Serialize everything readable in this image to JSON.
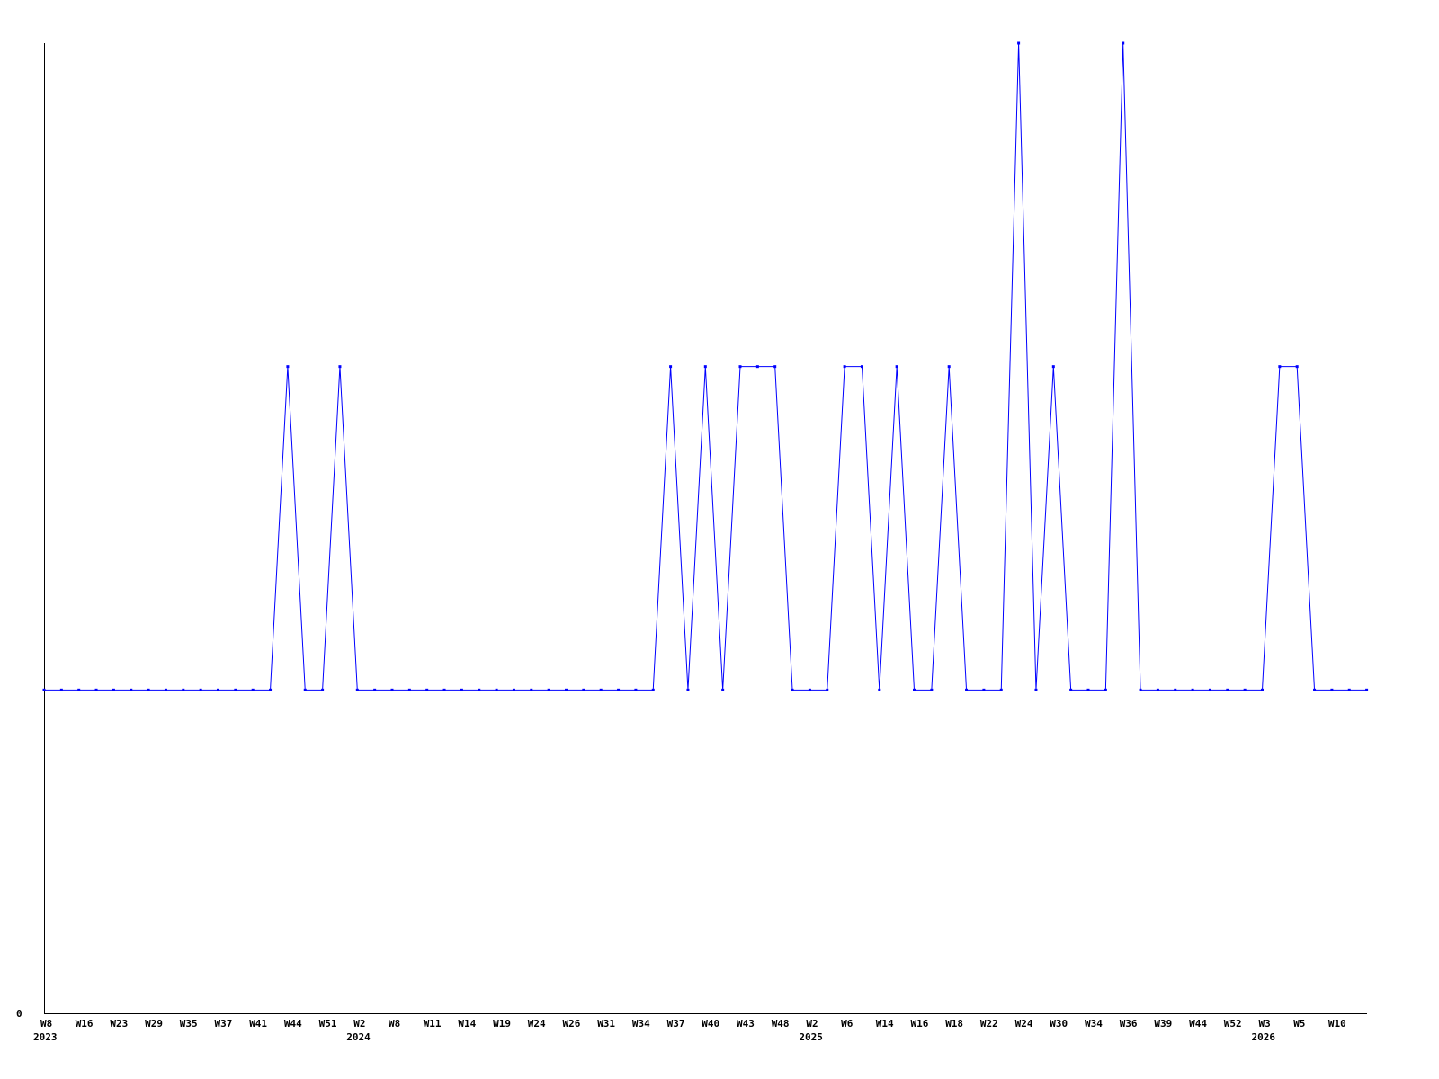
{
  "chart_data": {
    "type": "line",
    "title": "",
    "xlabel": "",
    "ylabel": "",
    "ylim": [
      0,
      3
    ],
    "y_tick_labels": [
      "0"
    ],
    "grid": false,
    "line_color": "#0000ff",
    "axis_color": "#000000",
    "values": [
      1,
      1,
      1,
      1,
      1,
      1,
      1,
      1,
      1,
      1,
      1,
      1,
      1,
      1,
      2,
      1,
      1,
      2,
      1,
      1,
      1,
      1,
      1,
      1,
      1,
      1,
      1,
      1,
      1,
      1,
      1,
      1,
      1,
      1,
      1,
      1,
      2,
      1,
      2,
      1,
      2,
      2,
      2,
      1,
      1,
      1,
      2,
      2,
      1,
      2,
      1,
      1,
      2,
      1,
      1,
      1,
      3,
      1,
      2,
      1,
      1,
      1,
      3,
      1,
      1,
      1,
      1,
      1,
      1,
      1,
      1,
      2,
      2,
      1,
      1,
      1,
      1
    ],
    "x_tick_labels": [
      "W8",
      "W16",
      "W23",
      "W29",
      "W35",
      "W37",
      "W41",
      "W44",
      "W51",
      "W2",
      "W8",
      "W11",
      "W14",
      "W19",
      "W24",
      "W26",
      "W31",
      "W34",
      "W37",
      "W40",
      "W43",
      "W48",
      "W2",
      "W6",
      "W14",
      "W16",
      "W18",
      "W22",
      "W24",
      "W30",
      "W34",
      "W36",
      "W39",
      "W44",
      "W52",
      "W3",
      "W5",
      "W10"
    ],
    "year_labels": [
      {
        "label": "2023",
        "at_tick": 0
      },
      {
        "label": "2024",
        "at_tick": 9
      },
      {
        "label": "2025",
        "at_tick": 22
      },
      {
        "label": "2026",
        "at_tick": 35
      }
    ]
  }
}
